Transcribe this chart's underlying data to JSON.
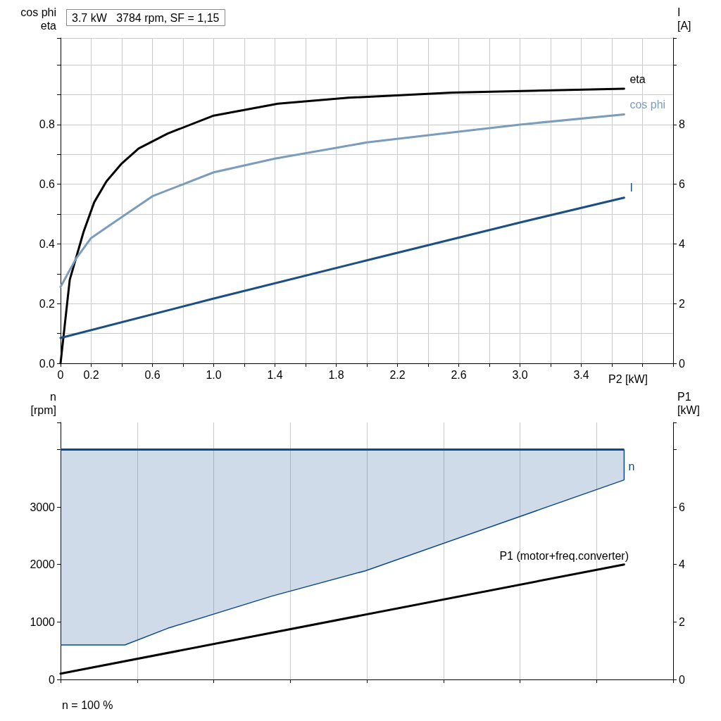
{
  "chart_data": [
    {
      "type": "line",
      "title": "3.7 kW   3784 rpm, SF = 1,15",
      "xlabel": "P2 [kW]",
      "ylabel": "cos phi\neta",
      "y2label": "I\n[A]",
      "xlim": [
        0,
        4
      ],
      "xticks": [
        {
          "value": 0,
          "label": "0"
        },
        {
          "value": 0.2,
          "label": "0.2"
        },
        {
          "value": 0.4,
          "label": null
        },
        {
          "value": 0.6,
          "label": "0.6"
        },
        {
          "value": 0.8,
          "label": null
        },
        {
          "value": 1.0,
          "label": "1.0"
        },
        {
          "value": 1.2,
          "label": null
        },
        {
          "value": 1.4,
          "label": "1.4"
        },
        {
          "value": 1.6,
          "label": null
        },
        {
          "value": 1.8,
          "label": "1.8"
        },
        {
          "value": 2.0,
          "label": null
        },
        {
          "value": 2.2,
          "label": "2.2"
        },
        {
          "value": 2.4,
          "label": null
        },
        {
          "value": 2.6,
          "label": "2.6"
        },
        {
          "value": 2.8,
          "label": null
        },
        {
          "value": 3.0,
          "label": "3.0"
        },
        {
          "value": 3.2,
          "label": null
        },
        {
          "value": 3.4,
          "label": "3.4"
        },
        {
          "value": 3.6,
          "label": null
        },
        {
          "value": 3.8,
          "label": null
        }
      ],
      "ylim": [
        0,
        1.09
      ],
      "yticks": [
        {
          "value": 0,
          "label": "0.0"
        },
        {
          "value": 0.1,
          "label": null
        },
        {
          "value": 0.2,
          "label": "0.2"
        },
        {
          "value": 0.3,
          "label": null
        },
        {
          "value": 0.4,
          "label": "0.4"
        },
        {
          "value": 0.5,
          "label": null
        },
        {
          "value": 0.6,
          "label": "0.6"
        },
        {
          "value": 0.7,
          "label": null
        },
        {
          "value": 0.8,
          "label": "0.8"
        },
        {
          "value": 0.9,
          "label": null
        },
        {
          "value": 1.0,
          "label": null
        }
      ],
      "y2lim": [
        0,
        10.9
      ],
      "y2ticks": [
        0,
        2,
        4,
        6,
        8
      ],
      "grid": true,
      "series": [
        {
          "name": "eta",
          "color": "#000000",
          "x": [
            0,
            0.06,
            0.15,
            0.22,
            0.3,
            0.4,
            0.51,
            0.7,
            1.0,
            1.42,
            1.88,
            2.56,
            3.68
          ],
          "values": [
            0,
            0.28,
            0.44,
            0.54,
            0.61,
            0.67,
            0.72,
            0.77,
            0.83,
            0.87,
            0.89,
            0.907,
            0.92
          ]
        },
        {
          "name": "cos phi",
          "color": "#7a9cbd",
          "x": [
            0,
            0.1,
            0.2,
            0.4,
            0.6,
            1.0,
            1.4,
            2.0,
            2.6,
            3.0,
            3.68
          ],
          "values": [
            0.256,
            0.35,
            0.42,
            0.49,
            0.56,
            0.64,
            0.686,
            0.74,
            0.776,
            0.8,
            0.834
          ]
        },
        {
          "name": "I",
          "color": "#1a4f85",
          "axis": "y2",
          "x": [
            0,
            1.0,
            2.0,
            3.0,
            3.68
          ],
          "values": [
            0.85,
            2.17,
            3.45,
            4.72,
            5.55
          ]
        }
      ]
    },
    {
      "type": "line",
      "ylabel": "n\n[rpm]",
      "y2label": "P1\n[kW]",
      "tick_labels": "y",
      "grid": "x",
      "xlim": [
        0,
        4
      ],
      "xticks": [
        {
          "value": 0,
          "label": null
        },
        {
          "value": 0.5,
          "label": null
        },
        {
          "value": 1.0,
          "label": null
        },
        {
          "value": 1.5,
          "label": null
        },
        {
          "value": 2.0,
          "label": null
        },
        {
          "value": 2.5,
          "label": null
        },
        {
          "value": 3.0,
          "label": null
        },
        {
          "value": 3.5,
          "label": null
        }
      ],
      "ylim": [
        0,
        4470
      ],
      "yticks": [
        0,
        1000,
        2000,
        3000
      ],
      "y2lim": [
        0,
        8.94
      ],
      "y2ticks": [
        0,
        2,
        4,
        6
      ],
      "annotations": [
        "n = 100 %"
      ],
      "series": [
        {
          "name": "n",
          "color": "#0d4a8a",
          "x": [
            0,
            0.42,
            0.7,
            1.38,
            1.99,
            3.68
          ],
          "values": [
            4000,
            4000,
            4000,
            4000,
            4000,
            4000
          ],
          "lower": [
            600,
            600,
            890,
            1450,
            1890,
            3470
          ],
          "upper": [
            4000,
            4000,
            4000,
            4000,
            4000,
            4000
          ]
        },
        {
          "name": "P1 (motor+freq.converter)",
          "color": "#000000",
          "axis": "y2",
          "x": [
            0,
            3.68
          ],
          "values": [
            0.2,
            4.0
          ]
        }
      ]
    }
  ]
}
